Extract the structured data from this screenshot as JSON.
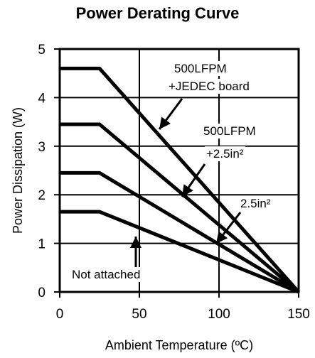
{
  "chart_data": {
    "type": "line",
    "title": "Power Derating Curve",
    "xlabel": "Ambient Temperature (ºC)",
    "ylabel": "Power Dissipation (W)",
    "xlim": [
      0,
      150
    ],
    "ylim": [
      0,
      5
    ],
    "x_ticks": [
      "0",
      "50",
      "100",
      "150"
    ],
    "y_ticks": [
      "0",
      "1",
      "2",
      "3",
      "4",
      "5"
    ],
    "grid": true,
    "series": [
      {
        "points": [
          [
            0,
            4.6
          ],
          [
            25,
            4.6
          ],
          [
            150,
            0
          ]
        ]
      },
      {
        "points": [
          [
            0,
            3.45
          ],
          [
            25,
            3.45
          ],
          [
            150,
            0
          ]
        ]
      },
      {
        "points": [
          [
            0,
            2.45
          ],
          [
            25,
            2.45
          ],
          [
            150,
            0
          ]
        ]
      },
      {
        "points": [
          [
            0,
            1.65
          ],
          [
            25,
            1.65
          ],
          [
            150,
            0
          ]
        ]
      }
    ],
    "annotations": [
      {
        "text": "500LFPM",
        "line": 1
      },
      {
        "text": "+JEDEC board",
        "line": 2
      },
      {
        "text": "500LFPM",
        "line": 3
      },
      {
        "text": "+2.5in²",
        "line": 4
      },
      {
        "text": "2.5in²",
        "line": 5
      },
      {
        "text": "Not  attached",
        "line": 6
      }
    ]
  }
}
